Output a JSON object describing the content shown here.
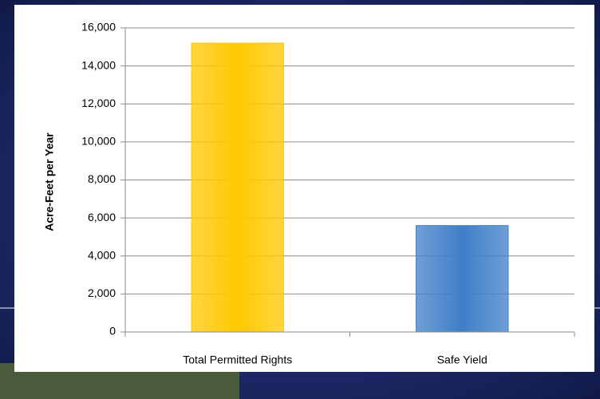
{
  "chart_data": {
    "type": "bar",
    "y_axis_label": "Acre-Feet per Year",
    "categories": [
      "Total Permitted Rights",
      "Safe Yield"
    ],
    "values": [
      15200,
      5600
    ],
    "colors": [
      "#ffc800",
      "#3f7fc8"
    ],
    "ylim": [
      0,
      16000
    ],
    "yticks": [
      0,
      {
        "value": 2000,
        "label": "2,000"
      },
      {
        "value": 4000,
        "label": "4,000"
      },
      {
        "value": 6000,
        "label": "6,000"
      },
      {
        "value": 8000,
        "label": "8,000"
      },
      {
        "value": 10000,
        "label": "10,000"
      },
      {
        "value": 12000,
        "label": "12,000"
      },
      {
        "value": 14000,
        "label": "14,000"
      },
      {
        "value": 16000,
        "label": "16,000"
      }
    ],
    "grid": true
  }
}
